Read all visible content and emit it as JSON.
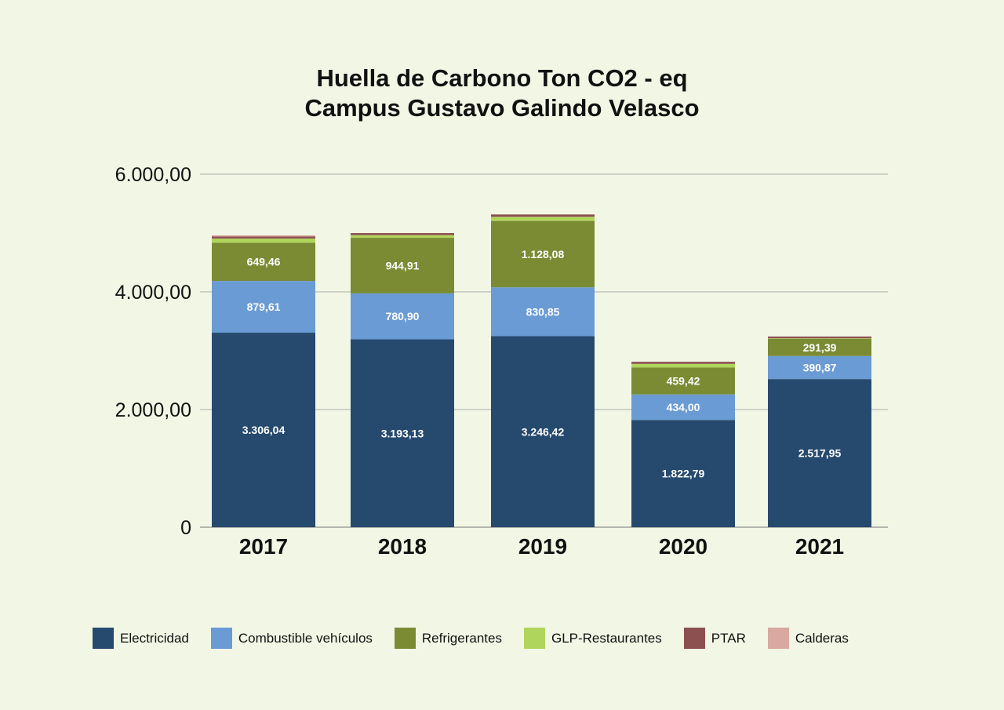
{
  "chart_data": {
    "type": "bar",
    "stacked": true,
    "title": [
      "Huella de Carbono Ton CO2 - eq",
      "Campus Gustavo Galindo Velasco"
    ],
    "categories": [
      "2017",
      "2018",
      "2019",
      "2020",
      "2021"
    ],
    "y_ticks": [
      "0",
      "2.000,00",
      "4.000,00",
      "6.000,00"
    ],
    "ylim": [
      0,
      6000
    ],
    "grid": true,
    "legend_position": "bottom",
    "series": [
      {
        "name": "Electricidad",
        "color": "#264a6e",
        "values": [
          3306.04,
          3193.13,
          3246.42,
          1822.79,
          2517.95
        ],
        "labels": [
          "3.306,04",
          "3.193,13",
          "3.246,42",
          "1.822,79",
          "2.517,95"
        ]
      },
      {
        "name": "Combustible vehículos",
        "color": "#6a9bd4",
        "values": [
          879.61,
          780.9,
          830.85,
          434.0,
          390.87
        ],
        "labels": [
          "879,61",
          "780,90",
          "830,85",
          "434,00",
          "390,87"
        ]
      },
      {
        "name": "Refrigerantes",
        "color": "#7a8b34",
        "values": [
          649.46,
          944.91,
          1128.08,
          459.42,
          291.39
        ],
        "labels": [
          "649,46",
          "944,91",
          "1.128,08",
          "459,42",
          "291,39"
        ]
      },
      {
        "name": "GLP-Restaurantes",
        "color": "#b0d55c",
        "values": [
          70,
          45,
          70,
          60,
          10
        ],
        "labels": []
      },
      {
        "name": "PTAR",
        "color": "#8c5050",
        "values": [
          35,
          35,
          40,
          35,
          30
        ],
        "labels": []
      },
      {
        "name": "Calderas",
        "color": "#d9a8a0",
        "values": [
          20,
          0,
          0,
          0,
          0
        ],
        "labels": []
      }
    ]
  }
}
